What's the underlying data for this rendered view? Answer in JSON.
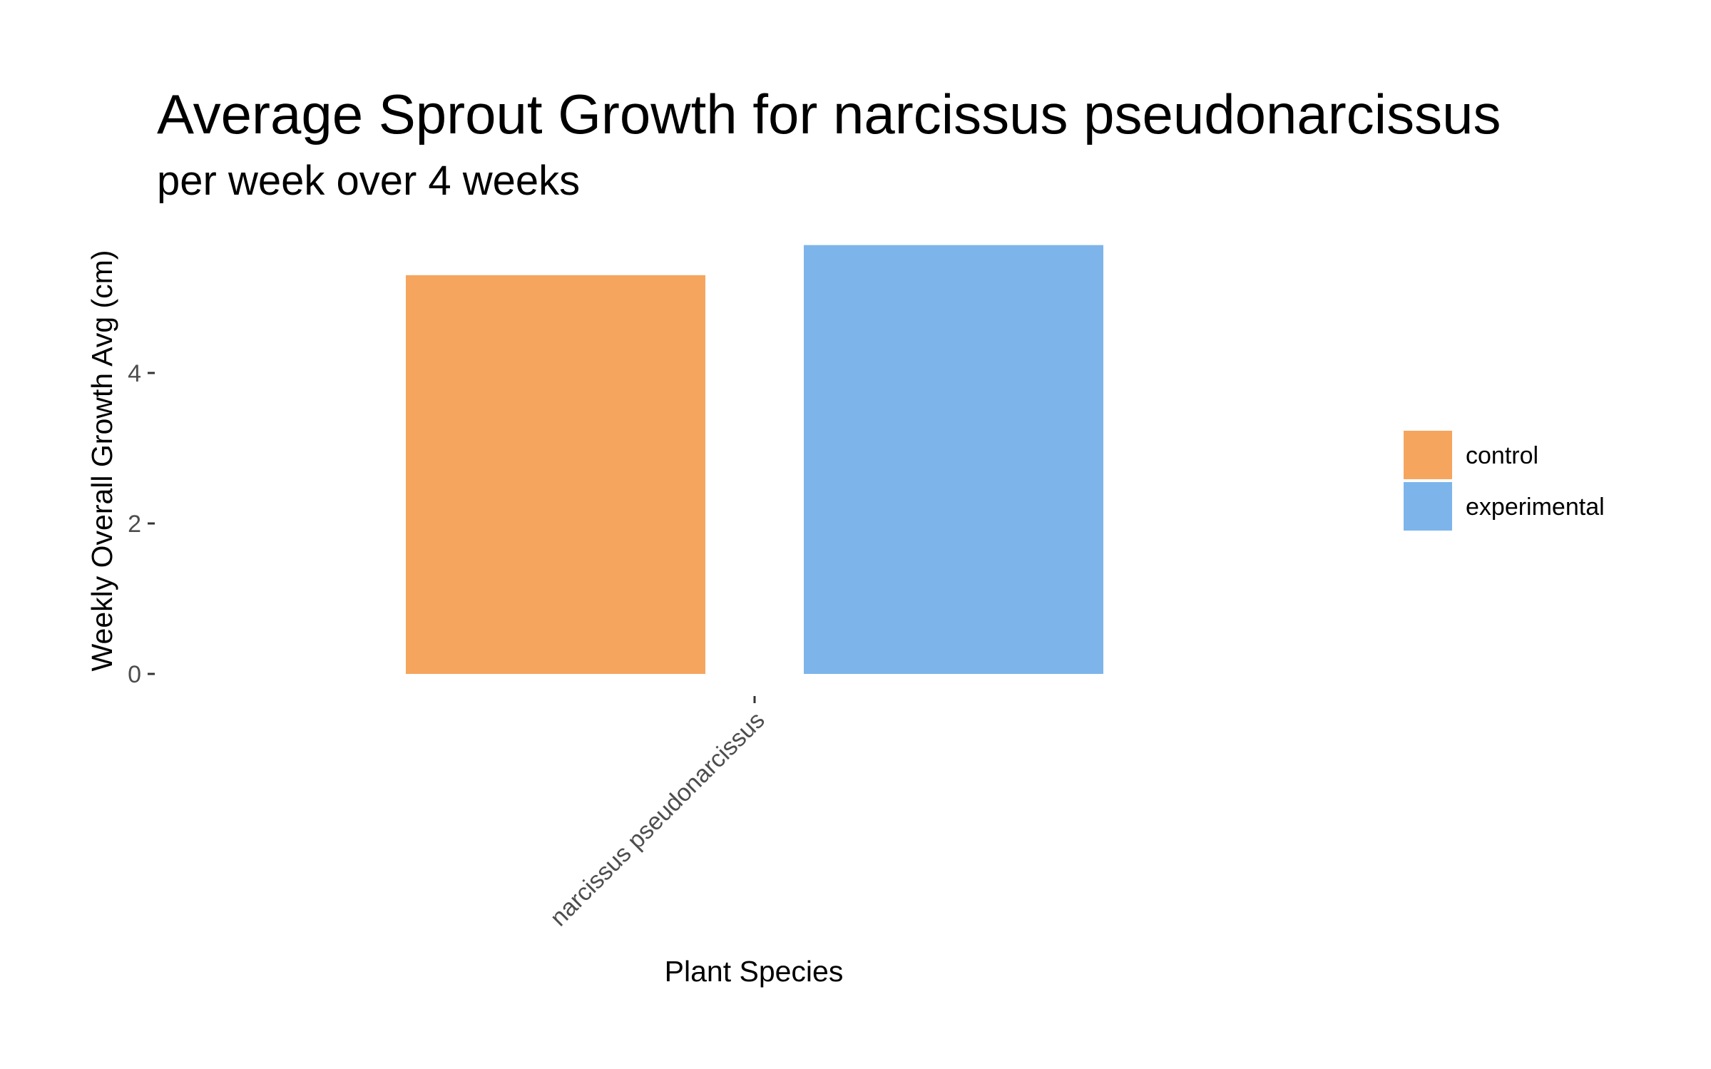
{
  "chart_data": {
    "type": "bar",
    "title": "Average Sprout Growth for narcissus pseudonarcissus",
    "subtitle": "per week over 4 weeks",
    "xlabel": "Plant Species",
    "ylabel": "Weekly Overall Growth Avg (cm)",
    "categories": [
      "narcissus pseudonarcissus"
    ],
    "series": [
      {
        "name": "control",
        "values": [
          5.3
        ],
        "color": "#F6A55E"
      },
      {
        "name": "experimental",
        "values": [
          5.7
        ],
        "color": "#7DB5EB"
      }
    ],
    "yticks": [
      0,
      2,
      4
    ],
    "ylim": [
      0,
      5.7
    ],
    "grid": false,
    "legend": {
      "position": "right",
      "items": [
        "control",
        "experimental"
      ]
    }
  }
}
